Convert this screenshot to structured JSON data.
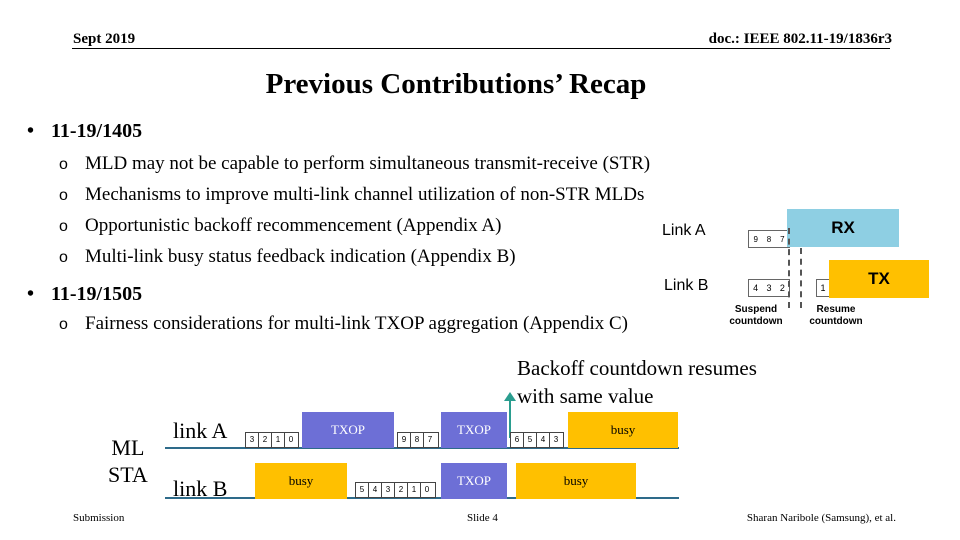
{
  "header": {
    "date": "Sept 2019",
    "doc": "doc.: IEEE 802.11-19/1836r3"
  },
  "title": "Previous Contributions’ Recap",
  "sections": [
    {
      "label": "11-19/1405",
      "items": [
        "MLD may not be capable to perform simultaneous transmit-receive (STR)",
        "Mechanisms to improve multi-link channel utilization of non-STR MLDs",
        "Opportunistic backoff recommencement (Appendix A)",
        "Multi-link busy status feedback indication (Appendix B)"
      ]
    },
    {
      "label": "11-19/1505",
      "items": [
        "Fairness considerations for multi-link TXOP aggregation (Appendix C)"
      ]
    }
  ],
  "bullet_symbols": {
    "level1": "•",
    "level2": "o"
  },
  "top_diagram": {
    "link_a": "Link A",
    "link_b": "Link B",
    "rx": "RX",
    "tx": "TX",
    "a_counts": [
      "9",
      "8",
      "7"
    ],
    "b_counts": [
      "4",
      "3",
      "2"
    ],
    "b_after": [
      "1",
      "0"
    ],
    "suspend": "Suspend countdown",
    "resume": "Resume countdown",
    "colors": {
      "rx": "#8ecfe3",
      "tx": "#ffc000"
    }
  },
  "bottom_diagram": {
    "annotation": "Backoff countdown resumes with same value",
    "ml_sta": [
      "ML",
      "STA"
    ],
    "link_a": "link A",
    "link_b": "link B",
    "a_counts_1": [
      "3",
      "2",
      "1",
      "0"
    ],
    "a_txop_1": "TXOP",
    "a_counts_2": [
      "9",
      "8",
      "7"
    ],
    "a_txop_2": "TXOP",
    "a_counts_3": [
      "6",
      "5",
      "4",
      "3"
    ],
    "a_busy": "busy",
    "b_busy_1": "busy",
    "b_counts_1": [
      "5",
      "4",
      "3",
      "2",
      "1",
      "0"
    ],
    "b_txop": "TXOP",
    "b_busy_2": "busy",
    "colors": {
      "txop": "#6d6fd6",
      "busy": "#ffc000",
      "arrow": "#2a9d8f"
    }
  },
  "footer": {
    "left": "Submission",
    "center": "Slide 4",
    "right": "Sharan Naribole (Samsung), et al."
  }
}
